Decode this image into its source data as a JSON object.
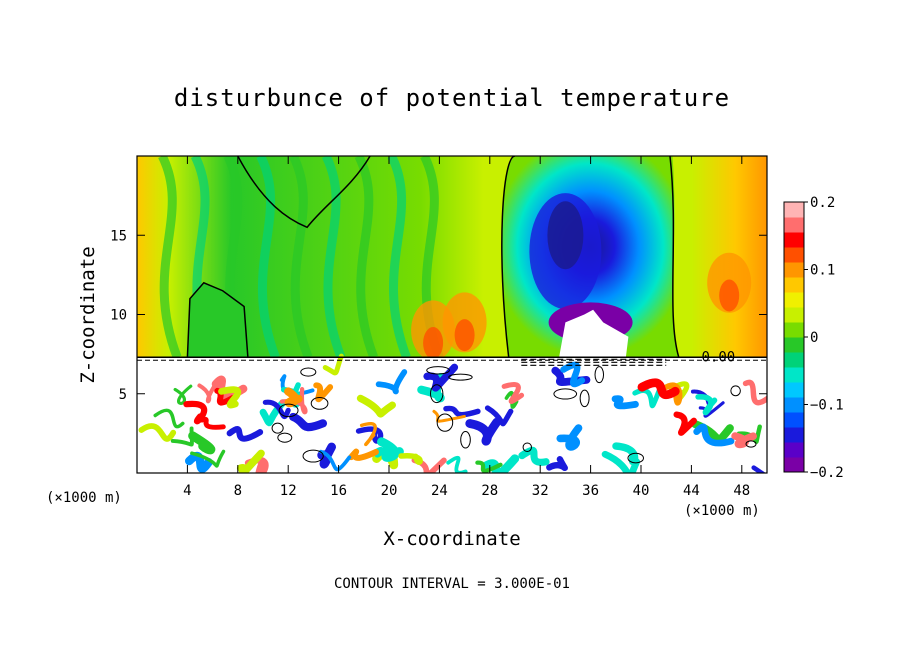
{
  "chart_data": {
    "type": "heatmap",
    "title": "disturbunce of potential temperature",
    "xlabel": "X-coordinate",
    "ylabel": "Z-coordinate",
    "x_unit": "(×1000 m)",
    "xlim": [
      0,
      50
    ],
    "ylim": [
      0,
      20
    ],
    "x_ticks": [
      4,
      8,
      12,
      16,
      20,
      24,
      28,
      32,
      36,
      40,
      44,
      48
    ],
    "x_tick_labels": [
      "4",
      "8",
      "12",
      "16",
      "20",
      "24",
      "28",
      "32",
      "36",
      "40",
      "44",
      "48"
    ],
    "y_ticks": [
      5,
      10,
      15
    ],
    "y_tick_labels": [
      "5",
      "10",
      "15"
    ],
    "colorbar": {
      "range": [
        -0.2,
        0.2
      ],
      "tick_values": [
        0.2,
        0.1,
        0,
        -0.1,
        -0.2
      ],
      "tick_labels": [
        "0.2",
        "0.1",
        "0",
        "−0.1",
        "−0.2"
      ],
      "colors": [
        "#7a00a6",
        "#5a00c8",
        "#1a1adc",
        "#0050ff",
        "#0090ff",
        "#00c8ff",
        "#00e6c8",
        "#00d278",
        "#28c828",
        "#78dc00",
        "#c8f000",
        "#f0f000",
        "#ffc800",
        "#ff9600",
        "#ff5000",
        "#ff0000",
        "#ff6e6e",
        "#ffb4b4"
      ]
    },
    "contour_label": "0.00",
    "contour_interval_text": "CONTOUR INTERVAL = 3.000E-01",
    "cold_anomaly_center": {
      "x": 34,
      "z": 14,
      "value": -0.2
    }
  }
}
